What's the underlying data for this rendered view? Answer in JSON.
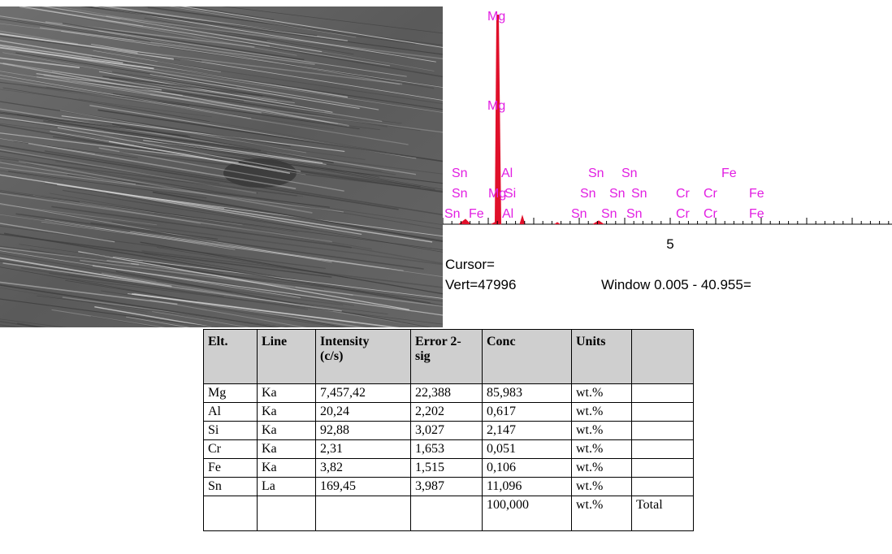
{
  "spectrum": {
    "peak_labels": [
      "Mg",
      "Mg",
      "Sn",
      "Al",
      "Sn",
      "Sn",
      "Fe",
      "Sn",
      "Mg",
      "Si",
      "Sn",
      "Sn",
      "Sn",
      "Cr",
      "Cr",
      "Fe",
      "Sn",
      "Fe",
      "Al",
      "Sn",
      "Sn",
      "Sn",
      "Cr",
      "Cr",
      "Fe"
    ],
    "axis_tick": "5",
    "cursor": "Cursor=",
    "vert": "Vert=47996",
    "window": "Window 0.005 - 40.955="
  },
  "table": {
    "header": [
      "Elt.",
      "Line",
      "Intensity (c/s)",
      "Error 2-sig",
      "Conc",
      "Units"
    ],
    "rows": [
      [
        "Mg",
        "Ka",
        "7,457,42",
        "22,388",
        "85,983",
        "wt.%"
      ],
      [
        "Al",
        "Ka",
        "20,24",
        "2,202",
        "0,617",
        "wt.%"
      ],
      [
        "Si",
        "Ka",
        "92,88",
        "3,027",
        "2,147",
        "wt.%"
      ],
      [
        "Cr",
        "Ka",
        "2,31",
        "1,653",
        "0,051",
        "wt.%"
      ],
      [
        "Fe",
        "Ka",
        "3,82",
        "1,515",
        "0,106",
        "wt.%"
      ],
      [
        "Sn",
        "La",
        "169,45",
        "3,987",
        "11,096",
        "wt.%"
      ]
    ],
    "total_row": {
      "conc": "100,000",
      "units": "wt.%",
      "label": "Total"
    }
  }
}
